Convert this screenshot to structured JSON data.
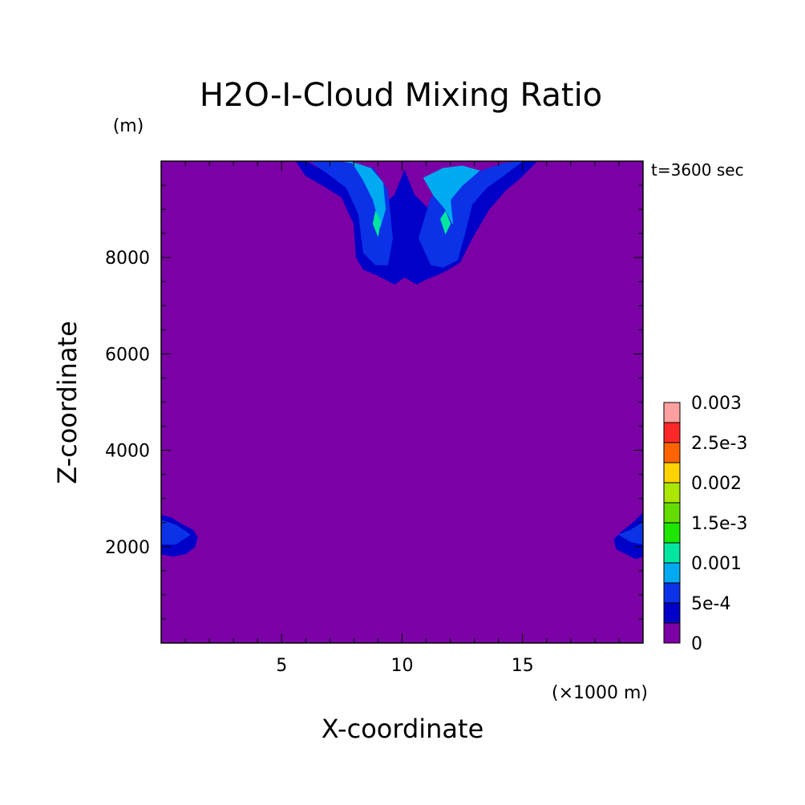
{
  "chart_data": {
    "type": "heatmap",
    "title": "H2O-I-Cloud Mixing Ratio",
    "xlabel": "X-coordinate",
    "ylabel": "Z-coordinate",
    "x_unit": "(×1000 m)",
    "y_unit": "(m)",
    "time_label": "t=3600 sec",
    "xlim": [
      0,
      20
    ],
    "ylim": [
      0,
      10000
    ],
    "x_ticks": [
      5,
      10,
      15
    ],
    "x_tick_labels": [
      "5",
      "10",
      "15"
    ],
    "y_ticks": [
      2000,
      4000,
      6000,
      8000
    ],
    "y_tick_labels": [
      "2000",
      "4000",
      "6000",
      "8000"
    ],
    "colorbar": {
      "levels": [
        0,
        0.00025,
        0.0005,
        0.00075,
        0.001,
        0.00125,
        0.0015,
        0.00175,
        0.002,
        0.00225,
        0.0025,
        0.00275,
        0.003
      ],
      "labels": [
        "0",
        "5e-4",
        "0.001",
        "1.5e-3",
        "0.002",
        "2.5e-3",
        "0.003"
      ],
      "colors": [
        "#7B00A5",
        "#0000C8",
        "#0B32E6",
        "#00AAF0",
        "#00E6A0",
        "#1EE600",
        "#64DC00",
        "#AAE600",
        "#FFD200",
        "#FF6400",
        "#FF2828",
        "#FFA0A0"
      ]
    },
    "contours": [
      {
        "level": 1,
        "x": [
          5.6,
          6.0,
          6.7,
          7.5,
          8.0,
          8.1,
          8.4,
          8.9,
          9.3,
          9.7,
          10.1,
          10.6,
          11.0,
          11.5,
          11.9,
          12.4,
          12.9,
          13.6,
          14.3,
          14.9,
          15.6,
          15.2,
          14.1,
          13.2,
          12.2,
          11.3,
          10.5,
          10.1,
          9.7,
          8.8,
          7.8,
          6.9,
          6.0
        ],
        "y": [
          10000,
          9700,
          9500,
          9250,
          8700,
          8000,
          7750,
          7650,
          7550,
          7450,
          7600,
          7450,
          7550,
          7650,
          7750,
          7900,
          8400,
          9000,
          9400,
          9650,
          10000,
          10000,
          9850,
          9650,
          9300,
          8900,
          9300,
          9800,
          9300,
          8900,
          9400,
          9750,
          10000
        ]
      },
      {
        "level": 2,
        "x": [
          6.2,
          6.9,
          7.7,
          8.2,
          8.4,
          8.9,
          9.4,
          9.6,
          9.4,
          8.8,
          7.9,
          7.0
        ],
        "y": [
          10000,
          9750,
          9450,
          8900,
          8100,
          7850,
          7850,
          8400,
          9400,
          9850,
          9950,
          10000
        ]
      },
      {
        "level": 2,
        "x": [
          10.7,
          11.2,
          11.7,
          12.3,
          12.6,
          12.9,
          13.5,
          14.2,
          15.0,
          14.2,
          13.3,
          12.2,
          11.2
        ],
        "y": [
          8400,
          7850,
          7800,
          7950,
          8500,
          9100,
          9450,
          9700,
          10000,
          9950,
          9800,
          9500,
          9250
        ]
      },
      {
        "level": 3,
        "x": [
          7.9,
          8.4,
          8.8,
          9.1,
          9.3,
          9.2,
          8.7,
          8.1,
          7.5
        ],
        "y": [
          10000,
          9600,
          9200,
          8650,
          9000,
          9550,
          9850,
          9950,
          10000
        ]
      },
      {
        "level": 3,
        "x": [
          10.9,
          11.3,
          11.8,
          12.1,
          12.0,
          12.5,
          13.2,
          12.5,
          11.7
        ],
        "y": [
          9650,
          9300,
          9000,
          8700,
          9200,
          9500,
          9800,
          9900,
          9850
        ]
      },
      {
        "level": 4,
        "x": [
          8.8,
          9.0,
          9.1,
          8.9
        ],
        "y": [
          8700,
          8450,
          8750,
          8950
        ]
      },
      {
        "level": 4,
        "x": [
          11.6,
          11.8,
          12.0,
          11.8
        ],
        "y": [
          8800,
          8500,
          8700,
          8950
        ]
      },
      {
        "level": 1,
        "x": [
          0,
          0.4,
          0.9,
          1.3,
          1.5,
          1.4,
          1.0,
          0.5,
          0
        ],
        "y": [
          2650,
          2600,
          2450,
          2350,
          2200,
          2000,
          1850,
          1800,
          1850
        ]
      },
      {
        "level": 2,
        "x": [
          0,
          0.6,
          1.2,
          0.6,
          0
        ],
        "y": [
          2550,
          2450,
          2250,
          2050,
          2050
        ]
      },
      {
        "level": 1,
        "x": [
          20,
          19.6,
          19.1,
          18.8,
          18.9,
          19.3,
          19.7,
          20
        ],
        "y": [
          2700,
          2500,
          2300,
          2150,
          1950,
          1850,
          1750,
          1800
        ]
      },
      {
        "level": 2,
        "x": [
          20,
          19.5,
          19.0,
          19.5,
          20
        ],
        "y": [
          2500,
          2350,
          2250,
          2100,
          2050
        ]
      }
    ]
  }
}
